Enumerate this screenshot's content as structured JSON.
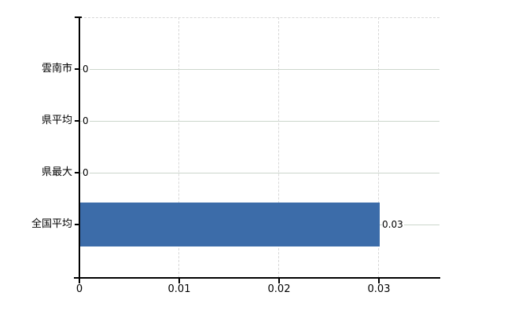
{
  "chart_data": {
    "type": "bar",
    "orientation": "horizontal",
    "title": "",
    "categories": [
      "雲南市",
      "県平均",
      "県最大",
      "全国平均"
    ],
    "values": [
      0,
      0,
      0,
      0.03
    ],
    "value_labels": [
      "0",
      "0",
      "0",
      "0.03"
    ],
    "x_ticks": [
      "0",
      "0.01",
      "0.02",
      "0.03"
    ],
    "x_tick_values": [
      0,
      0.01,
      0.02,
      0.03
    ],
    "xlim": [
      0,
      0.036
    ],
    "bar_color": "#3c6ca9",
    "grid": "on",
    "legend": "none",
    "gridline_color_horizontal": "#ccd6cc",
    "gridline_color_vertical": "#d8d8d8",
    "axis_color": "#000000"
  }
}
